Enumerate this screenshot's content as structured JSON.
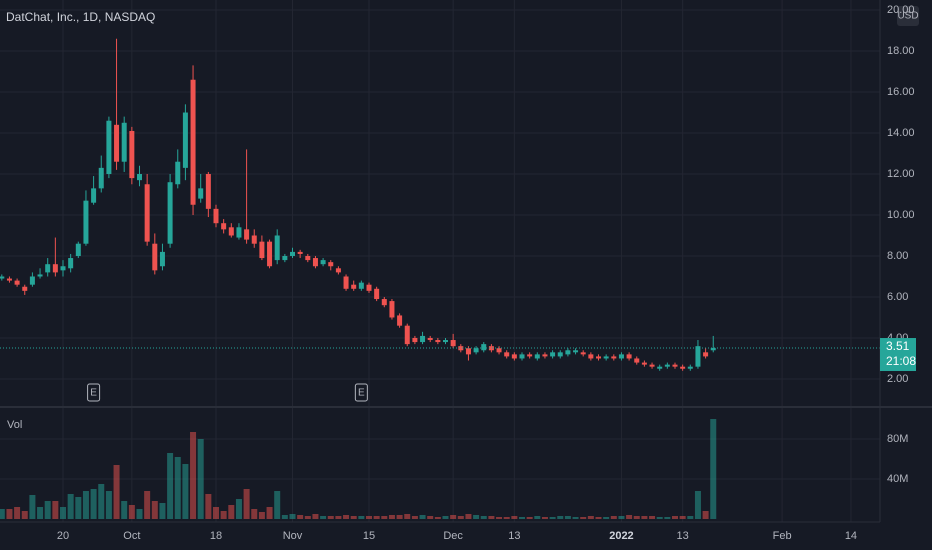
{
  "chart_data": {
    "type": "candlestick",
    "title": "DatChat, Inc., 1D, NASDAQ",
    "currency": "USD",
    "volume_label": "Vol",
    "countdown": "21:08",
    "up_color": "#26a69a",
    "down_color": "#ef5350",
    "grid": true,
    "categories": [
      null,
      null,
      null,
      null,
      null,
      null,
      null,
      null,
      "20",
      null,
      null,
      null,
      null,
      null,
      null,
      null,
      null,
      "Oct",
      null,
      null,
      null,
      null,
      null,
      null,
      null,
      null,
      null,
      null,
      "18",
      null,
      null,
      null,
      null,
      null,
      null,
      null,
      null,
      null,
      "Nov",
      null,
      null,
      null,
      null,
      null,
      null,
      null,
      null,
      null,
      "15",
      null,
      null,
      null,
      null,
      null,
      null,
      null,
      null,
      null,
      null,
      "Dec",
      null,
      null,
      null,
      null,
      null,
      null,
      null,
      "13",
      null,
      null,
      null,
      null,
      null,
      null,
      null,
      null,
      null,
      null,
      null,
      null,
      null,
      "2022",
      null,
      null,
      null,
      null,
      null,
      null,
      null,
      "13",
      null,
      null,
      null,
      null,
      null,
      null,
      null,
      null,
      null,
      null,
      null,
      null,
      "Feb",
      null,
      null,
      null,
      null,
      null,
      null,
      null,
      null,
      "14",
      null,
      null,
      null
    ],
    "open": [
      6.9,
      6.9,
      6.8,
      6.5,
      6.6,
      7.0,
      7.2,
      7.6,
      7.3,
      7.4,
      8.0,
      8.6,
      10.6,
      11.3,
      12.0,
      14.4,
      12.6,
      14.1,
      11.7,
      11.5,
      8.6,
      7.5,
      8.6,
      11.5,
      12.3,
      16.6,
      10.8,
      12.0,
      10.3,
      9.6,
      9.4,
      8.9,
      9.3,
      9.0,
      8.7,
      8.7,
      7.8,
      7.8,
      8.0,
      8.2,
      8.0,
      7.9,
      7.6,
      7.7,
      7.4,
      7.0,
      6.6,
      6.4,
      6.6,
      6.4,
      5.9,
      5.8,
      5.1,
      4.6,
      4.0,
      3.8,
      4.0,
      3.9,
      3.8,
      3.9,
      3.6,
      3.5,
      3.3,
      3.4,
      3.6,
      3.5,
      3.3,
      3.2,
      3.0,
      3.2,
      3.0,
      3.2,
      3.1,
      3.1,
      3.2,
      3.3,
      3.3,
      3.2,
      3.1,
      3.0,
      3.1,
      3.0,
      3.2,
      3.0,
      2.8,
      2.7,
      2.5,
      2.6,
      2.7,
      2.6,
      2.5,
      2.6,
      3.3,
      3.4,
      null,
      null,
      null,
      null,
      null,
      null,
      null,
      null,
      null,
      null,
      null,
      null,
      null,
      null,
      null,
      null,
      null,
      null,
      null,
      null,
      null
    ],
    "high": [
      7.1,
      7.0,
      6.9,
      6.6,
      7.2,
      7.4,
      7.9,
      8.9,
      7.8,
      8.1,
      8.7,
      11.2,
      11.9,
      12.9,
      14.8,
      18.6,
      14.8,
      14.3,
      12.4,
      12.0,
      9.1,
      8.6,
      12.0,
      13.2,
      15.4,
      17.3,
      12.0,
      12.1,
      10.5,
      9.8,
      9.6,
      9.6,
      13.2,
      9.3,
      9.0,
      8.8,
      9.3,
      8.1,
      8.4,
      8.3,
      8.1,
      8.0,
      7.9,
      7.8,
      7.5,
      7.1,
      6.8,
      6.8,
      6.7,
      6.5,
      6.0,
      5.9,
      5.2,
      4.7,
      4.1,
      4.3,
      4.1,
      4.0,
      4.0,
      4.2,
      3.7,
      3.6,
      3.6,
      3.8,
      3.7,
      3.6,
      3.4,
      3.3,
      3.3,
      3.3,
      3.3,
      3.3,
      3.4,
      3.4,
      3.5,
      3.5,
      3.4,
      3.3,
      3.2,
      3.2,
      3.2,
      3.3,
      3.3,
      3.1,
      2.9,
      2.8,
      2.7,
      2.8,
      2.8,
      2.7,
      2.7,
      3.9,
      3.5,
      4.1,
      null,
      null,
      null,
      null,
      null,
      null,
      null,
      null,
      null,
      null,
      null,
      null,
      null,
      null,
      null,
      null,
      null,
      null,
      null,
      null,
      null
    ],
    "low": [
      6.8,
      6.7,
      6.5,
      6.1,
      6.5,
      6.9,
      7.0,
      7.0,
      7.0,
      7.2,
      7.9,
      8.5,
      10.5,
      11.1,
      11.8,
      12.2,
      12.1,
      11.5,
      11.4,
      8.5,
      7.1,
      7.3,
      8.4,
      11.3,
      11.7,
      10.0,
      10.6,
      9.9,
      9.4,
      9.1,
      8.9,
      8.8,
      8.6,
      8.4,
      7.8,
      7.4,
      7.6,
      7.7,
      7.9,
      7.9,
      7.7,
      7.4,
      7.5,
      7.3,
      7.1,
      6.3,
      6.3,
      6.3,
      6.2,
      5.8,
      5.5,
      4.9,
      4.5,
      3.6,
      3.7,
      3.7,
      3.8,
      3.7,
      3.7,
      3.5,
      3.3,
      2.9,
      3.2,
      3.3,
      3.3,
      3.2,
      3.0,
      2.9,
      2.9,
      3.0,
      2.9,
      3.0,
      3.0,
      3.0,
      3.1,
      3.2,
      3.1,
      2.9,
      2.9,
      2.9,
      2.9,
      2.9,
      2.9,
      2.7,
      2.6,
      2.5,
      2.4,
      2.5,
      2.5,
      2.4,
      2.4,
      2.5,
      3.0,
      3.3,
      null,
      null,
      null,
      null,
      null,
      null,
      null,
      null,
      null,
      null,
      null,
      null,
      null,
      null,
      null,
      null,
      null,
      null,
      null,
      null,
      null
    ],
    "close": [
      7.0,
      6.8,
      6.6,
      6.3,
      7.0,
      7.1,
      7.6,
      7.2,
      7.5,
      7.9,
      8.6,
      10.7,
      11.3,
      12.3,
      14.6,
      12.6,
      14.5,
      11.8,
      12.0,
      8.7,
      7.3,
      8.2,
      11.6,
      12.6,
      15.0,
      10.5,
      11.3,
      10.3,
      9.6,
      9.3,
      9.0,
      9.4,
      8.8,
      8.6,
      7.9,
      7.5,
      9.0,
      8.0,
      8.2,
      8.1,
      7.8,
      7.5,
      7.8,
      7.5,
      7.2,
      6.4,
      6.4,
      6.7,
      6.3,
      5.9,
      5.6,
      5.0,
      4.6,
      3.7,
      3.8,
      4.1,
      3.9,
      3.8,
      3.9,
      3.6,
      3.4,
      3.2,
      3.5,
      3.7,
      3.4,
      3.3,
      3.1,
      3.0,
      3.2,
      3.1,
      3.2,
      3.1,
      3.3,
      3.3,
      3.4,
      3.4,
      3.2,
      3.0,
      3.0,
      3.1,
      3.0,
      3.2,
      3.0,
      2.8,
      2.7,
      2.6,
      2.6,
      2.7,
      2.6,
      2.5,
      2.6,
      3.6,
      3.1,
      3.51,
      null,
      null,
      null,
      null,
      null,
      null,
      null,
      null,
      null,
      null,
      null,
      null,
      null,
      null,
      null,
      null,
      null,
      null,
      null,
      null,
      null
    ],
    "volume": [
      10,
      10,
      12,
      8,
      24,
      12,
      18,
      18,
      12,
      25,
      22,
      28,
      30,
      35,
      28,
      54,
      18,
      14,
      10,
      28,
      18,
      16,
      66,
      62,
      55,
      87,
      80,
      25,
      12,
      8,
      14,
      20,
      30,
      10,
      7,
      12,
      28,
      4,
      5,
      4,
      3,
      5,
      3,
      3,
      3,
      4,
      3,
      3,
      3,
      3,
      3,
      4,
      4,
      5,
      3,
      4,
      3,
      2,
      3,
      4,
      3,
      5,
      4,
      3,
      3,
      2,
      2,
      3,
      2,
      2,
      3,
      2,
      2,
      3,
      3,
      2,
      2,
      3,
      2,
      2,
      3,
      3,
      4,
      3,
      3,
      3,
      2,
      2,
      3,
      3,
      3,
      28,
      8,
      100,
      null,
      null,
      null,
      null,
      null,
      null,
      null,
      null,
      null,
      null,
      null,
      null,
      null,
      null,
      null,
      null,
      null,
      null,
      null,
      null,
      null
    ],
    "ylim": [
      0.73,
      20.49
    ],
    "yticks": [
      {
        "value": 2,
        "label": "2.00"
      },
      {
        "value": 4,
        "label": "4.00"
      },
      {
        "value": 6,
        "label": "6.00"
      },
      {
        "value": 8,
        "label": "8.00"
      },
      {
        "value": 10,
        "label": "10.00"
      },
      {
        "value": 12,
        "label": "12.00"
      },
      {
        "value": 14,
        "label": "14.00"
      },
      {
        "value": 16,
        "label": "16.00"
      },
      {
        "value": 18,
        "label": "18.00"
      },
      {
        "value": 20,
        "label": "20.00"
      }
    ],
    "vlim": [
      0,
      111
    ],
    "vticks": [
      {
        "value": 40,
        "label": "40M"
      },
      {
        "value": 80,
        "label": "80M"
      }
    ],
    "earnings": [
      {
        "label": "E",
        "at": 12
      },
      {
        "label": "E",
        "at": 47
      }
    ]
  }
}
